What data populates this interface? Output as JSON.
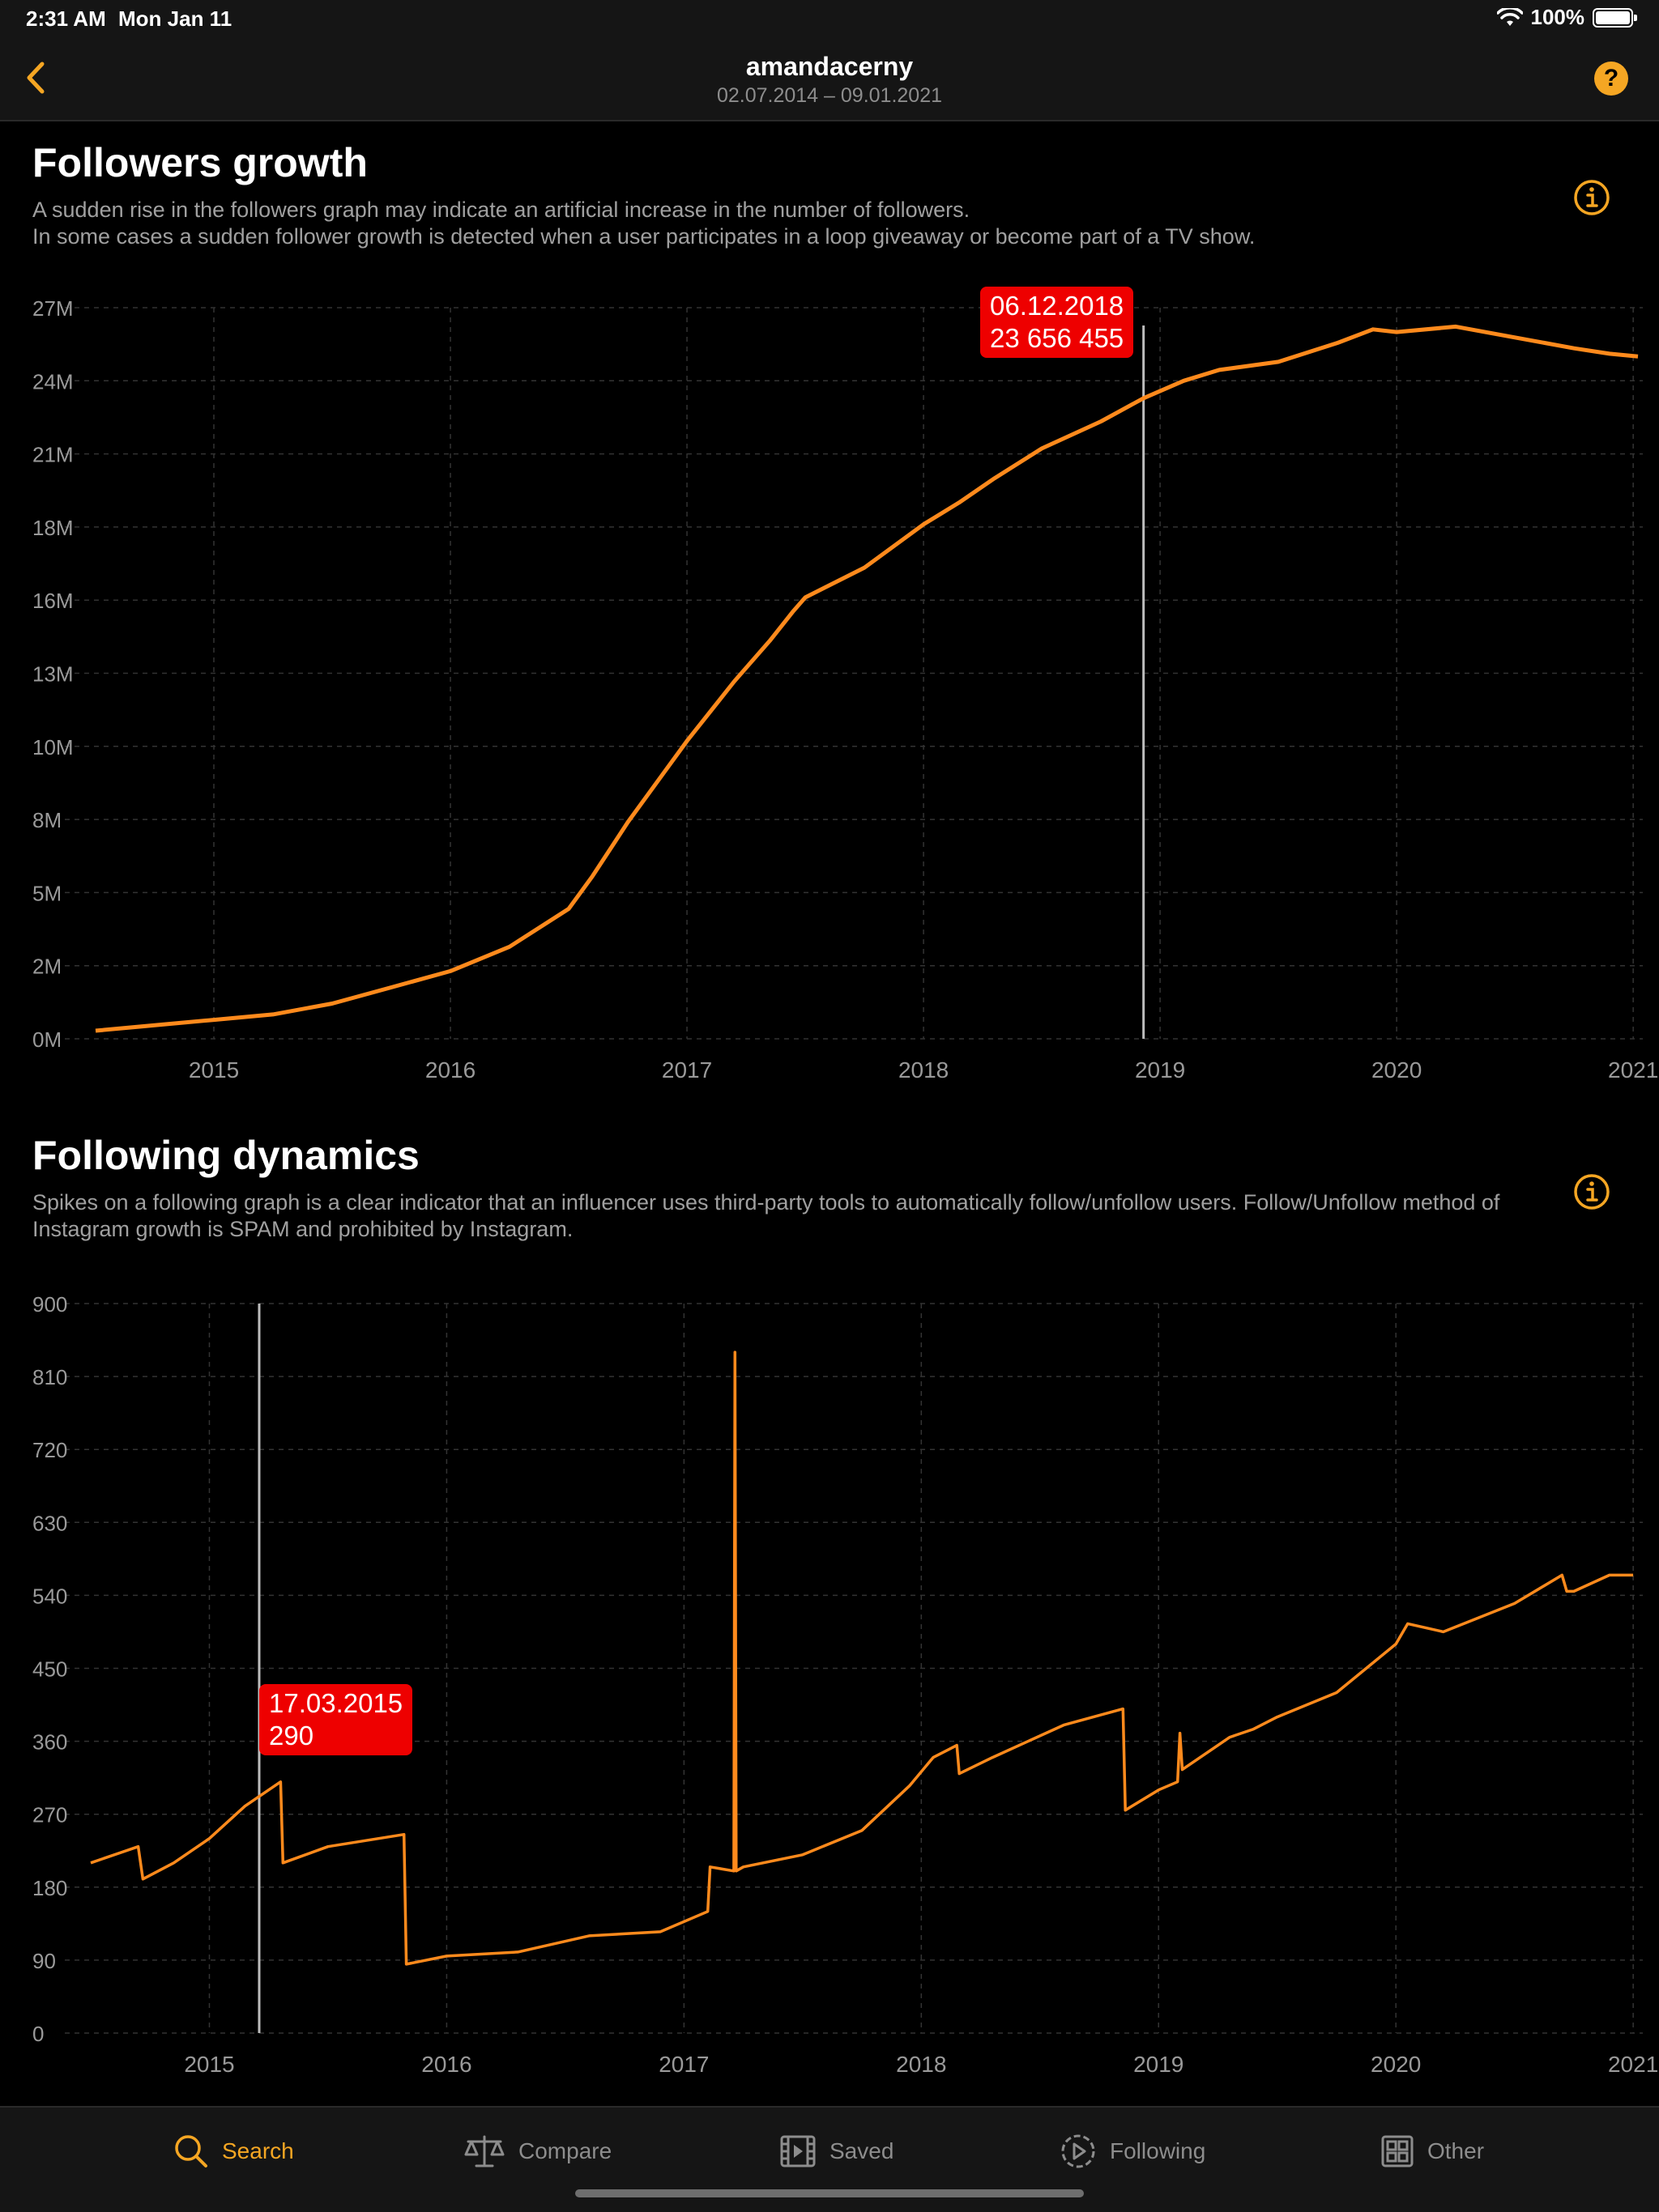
{
  "status_bar": {
    "time": "2:31 AM",
    "date": "Mon Jan 11",
    "battery": "100%"
  },
  "nav": {
    "title": "amandacerny",
    "subtitle": "02.07.2014 – 09.01.2021",
    "help": "?"
  },
  "followers": {
    "title": "Followers growth",
    "desc_line1": "A sudden rise in the followers graph may indicate an artificial increase in the number of followers.",
    "desc_line2": "In some cases a sudden follower growth is detected when a user participates in a loop giveaway or become part of a TV show.",
    "tooltip": {
      "date": "06.12.2018",
      "value": "23 656 455"
    }
  },
  "following": {
    "title": "Following dynamics",
    "desc": "Spikes on a following graph is a clear indicator that an influencer uses third-party tools to automatically follow/unfollow users. Follow/Unfollow method of Instagram growth is SPAM and prohibited by Instagram.",
    "tooltip": {
      "date": "17.03.2015",
      "value": "290"
    }
  },
  "tabs": {
    "search": "Search",
    "compare": "Compare",
    "saved": "Saved",
    "following": "Following",
    "other": "Other"
  },
  "colors": {
    "accent": "#f5a623",
    "line": "#ff8a1c",
    "tooltip": "#ee0000",
    "grid": "#333333"
  },
  "chart_data": [
    {
      "type": "line",
      "title": "Followers growth",
      "x_ticks": [
        "2015",
        "2016",
        "2017",
        "2018",
        "2019",
        "2020",
        "2021"
      ],
      "x_range": [
        2014.5,
        2021.02
      ],
      "y_ticks": [
        "27M",
        "24M",
        "21M",
        "18M",
        "16M",
        "13M",
        "10M",
        "8M",
        "5M",
        "2M",
        "0M"
      ],
      "y_range": [
        0,
        27000000
      ],
      "series": [
        {
          "name": "Followers",
          "x": [
            2014.5,
            2014.75,
            2015.0,
            2015.25,
            2015.5,
            2015.75,
            2016.0,
            2016.25,
            2016.5,
            2016.6,
            2016.75,
            2016.9,
            2017.0,
            2017.2,
            2017.35,
            2017.45,
            2017.5,
            2017.75,
            2018.0,
            2018.15,
            2018.3,
            2018.5,
            2018.75,
            2018.93,
            2019.1,
            2019.25,
            2019.5,
            2019.75,
            2019.9,
            2020.0,
            2020.25,
            2020.5,
            2020.75,
            2020.9,
            2021.02
          ],
          "y": [
            300000,
            500000,
            700000,
            900000,
            1300000,
            1900000,
            2500000,
            3400000,
            4800000,
            6000000,
            8000000,
            9800000,
            11000000,
            13200000,
            14700000,
            15800000,
            16300000,
            17400000,
            19000000,
            19800000,
            20700000,
            21800000,
            22800000,
            23656455,
            24300000,
            24700000,
            25000000,
            25700000,
            26200000,
            26100000,
            26300000,
            25900000,
            25500000,
            25300000,
            25200000
          ]
        }
      ],
      "highlight": {
        "x": 2018.93,
        "label_date": "06.12.2018",
        "label_value": "23 656 455"
      }
    },
    {
      "type": "line",
      "title": "Following dynamics",
      "x_ticks": [
        "2015",
        "2016",
        "2017",
        "2018",
        "2019",
        "2020",
        "2021"
      ],
      "x_range": [
        2014.5,
        2021.02
      ],
      "y_ticks": [
        "900",
        "810",
        "720",
        "630",
        "540",
        "450",
        "360",
        "270",
        "180",
        "90",
        "0"
      ],
      "y_range": [
        0,
        900
      ],
      "series": [
        {
          "name": "Following",
          "x": [
            2014.5,
            2014.7,
            2014.72,
            2014.85,
            2015.0,
            2015.15,
            2015.3,
            2015.31,
            2015.5,
            2015.82,
            2015.83,
            2016.0,
            2016.3,
            2016.6,
            2016.9,
            2017.1,
            2017.11,
            2017.21,
            2017.215,
            2017.22,
            2017.25,
            2017.5,
            2017.75,
            2017.95,
            2018.05,
            2018.15,
            2018.16,
            2018.3,
            2018.6,
            2018.85,
            2018.86,
            2019.0,
            2019.08,
            2019.09,
            2019.1,
            2019.3,
            2019.4,
            2019.5,
            2019.75,
            2020.0,
            2020.05,
            2020.2,
            2020.5,
            2020.7,
            2020.72,
            2020.75,
            2020.9,
            2021.0
          ],
          "y": [
            210,
            230,
            190,
            210,
            240,
            280,
            310,
            210,
            230,
            245,
            85,
            95,
            100,
            120,
            125,
            150,
            205,
            200,
            840,
            200,
            205,
            220,
            250,
            305,
            340,
            355,
            320,
            340,
            380,
            400,
            275,
            300,
            310,
            370,
            325,
            365,
            375,
            390,
            420,
            480,
            505,
            495,
            530,
            565,
            545,
            545,
            565,
            565
          ]
        }
      ],
      "highlight": {
        "x": 2015.21,
        "label_date": "17.03.2015",
        "label_value": "290"
      }
    }
  ]
}
